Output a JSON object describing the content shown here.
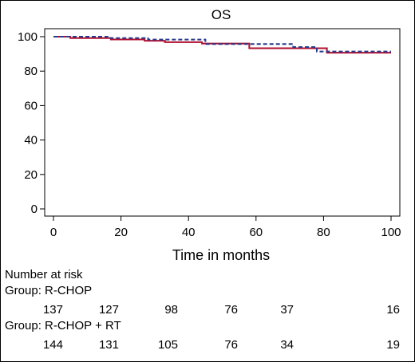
{
  "chart_data": {
    "type": "line",
    "title": "OS",
    "xlabel": "Time in months",
    "ylabel": "",
    "xlim": [
      0,
      100
    ],
    "ylim": [
      0,
      100
    ],
    "x_ticks": [
      0,
      20,
      40,
      60,
      80,
      100
    ],
    "y_ticks": [
      0,
      20,
      40,
      60,
      80,
      100
    ],
    "grid": false,
    "series": [
      {
        "name": "R-CHOP",
        "color": "#b01030",
        "style": "solid",
        "steps": [
          [
            0,
            100
          ],
          [
            5,
            99.2
          ],
          [
            17,
            98.4
          ],
          [
            27,
            97.6
          ],
          [
            33,
            96.8
          ],
          [
            44,
            96
          ],
          [
            58,
            93.3
          ],
          [
            81,
            90.7
          ],
          [
            100,
            90.7
          ]
        ]
      },
      {
        "name": "R-CHOP + RT",
        "color": "#2a3a8a",
        "style": "dashed",
        "steps": [
          [
            0,
            100
          ],
          [
            16,
            99.2
          ],
          [
            28,
            98.3
          ],
          [
            45,
            95.7
          ],
          [
            71,
            94
          ],
          [
            78,
            91.4
          ],
          [
            100,
            91.4
          ]
        ]
      }
    ],
    "risk_table": {
      "heading": "Number at risk",
      "groups": [
        {
          "label": "Group: R-CHOP",
          "counts": [
            "137",
            "127",
            "98",
            "76",
            "37",
            "16"
          ]
        },
        {
          "label": "Group: R-CHOP + RT",
          "counts": [
            "144",
            "131",
            "105",
            "76",
            "34",
            "19"
          ]
        }
      ]
    }
  }
}
